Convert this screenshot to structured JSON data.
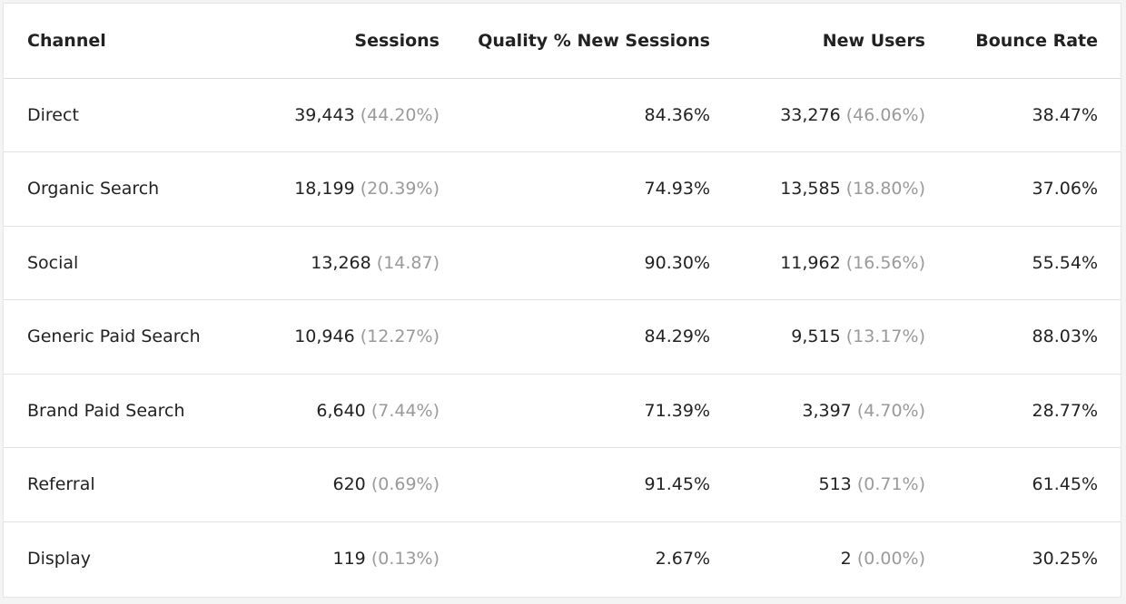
{
  "table": {
    "headers": {
      "channel": "Channel",
      "sessions": "Sessions",
      "quality": "Quality % New Sessions",
      "new_users": "New Users",
      "bounce": "Bounce Rate"
    },
    "rows": [
      {
        "channel": "Direct",
        "sessions": "39,443",
        "sessions_pct": "(44.20%)",
        "quality": "84.36%",
        "new_users": "33,276",
        "new_users_pct": "(46.06%)",
        "bounce": "38.47%"
      },
      {
        "channel": "Organic Search",
        "sessions": "18,199",
        "sessions_pct": "(20.39%)",
        "quality": "74.93%",
        "new_users": "13,585",
        "new_users_pct": "(18.80%)",
        "bounce": "37.06%"
      },
      {
        "channel": "Social",
        "sessions": "13,268",
        "sessions_pct": "(14.87)",
        "quality": "90.30%",
        "new_users": "11,962",
        "new_users_pct": "(16.56%)",
        "bounce": "55.54%"
      },
      {
        "channel": "Generic Paid Search",
        "sessions": "10,946",
        "sessions_pct": "(12.27%)",
        "quality": "84.29%",
        "new_users": "9,515",
        "new_users_pct": "(13.17%)",
        "bounce": "88.03%"
      },
      {
        "channel": "Brand Paid Search",
        "sessions": "6,640",
        "sessions_pct": "(7.44%)",
        "quality": "71.39%",
        "new_users": "3,397",
        "new_users_pct": "(4.70%)",
        "bounce": "28.77%"
      },
      {
        "channel": "Referral",
        "sessions": "620",
        "sessions_pct": "(0.69%)",
        "quality": "91.45%",
        "new_users": "513",
        "new_users_pct": "(0.71%)",
        "bounce": "61.45%"
      },
      {
        "channel": "Display",
        "sessions": "119",
        "sessions_pct": "(0.13%)",
        "quality": "2.67%",
        "new_users": "2",
        "new_users_pct": "(0.00%)",
        "bounce": "30.25%"
      }
    ]
  },
  "colors": {
    "text": "#222222",
    "muted_percent": "#9a9a9a",
    "row_divider": "#e2e2e2",
    "background": "#ffffff"
  }
}
